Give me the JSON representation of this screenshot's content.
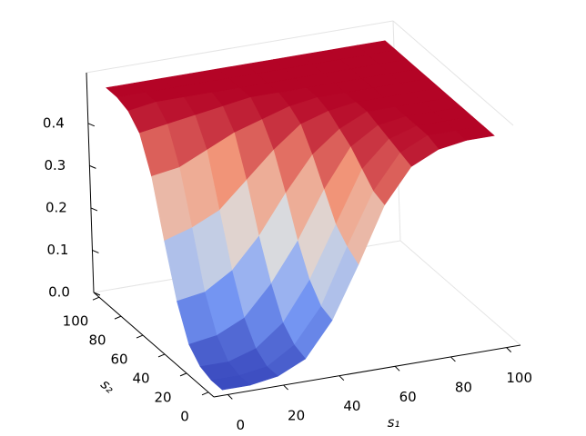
{
  "chart_data": {
    "type": "surface",
    "xlabel": "s₁",
    "ylabel": "s₂",
    "x": [
      0,
      10,
      20,
      30,
      40,
      50,
      60,
      70,
      80,
      90,
      100
    ],
    "y": [
      0,
      10,
      20,
      30,
      40,
      50,
      60,
      70,
      80,
      90,
      100
    ],
    "z": [
      [
        0,
        0,
        0.01,
        0.04,
        0.12,
        0.24,
        0.37,
        0.45,
        0.48,
        0.49,
        0.49
      ],
      [
        0,
        0,
        0.01,
        0.05,
        0.13,
        0.26,
        0.38,
        0.46,
        0.49,
        0.49,
        0.49
      ],
      [
        0.01,
        0.01,
        0.03,
        0.08,
        0.17,
        0.29,
        0.41,
        0.47,
        0.49,
        0.49,
        0.49
      ],
      [
        0.04,
        0.05,
        0.08,
        0.15,
        0.24,
        0.35,
        0.44,
        0.48,
        0.49,
        0.49,
        0.49
      ],
      [
        0.12,
        0.13,
        0.17,
        0.24,
        0.33,
        0.41,
        0.46,
        0.49,
        0.49,
        0.49,
        0.49
      ],
      [
        0.24,
        0.26,
        0.29,
        0.35,
        0.41,
        0.46,
        0.48,
        0.49,
        0.49,
        0.49,
        0.49
      ],
      [
        0.37,
        0.38,
        0.41,
        0.44,
        0.46,
        0.48,
        0.49,
        0.49,
        0.49,
        0.49,
        0.49
      ],
      [
        0.45,
        0.46,
        0.47,
        0.48,
        0.49,
        0.49,
        0.49,
        0.49,
        0.49,
        0.49,
        0.49
      ],
      [
        0.48,
        0.49,
        0.49,
        0.49,
        0.49,
        0.49,
        0.49,
        0.49,
        0.49,
        0.49,
        0.49
      ],
      [
        0.49,
        0.49,
        0.49,
        0.49,
        0.49,
        0.49,
        0.49,
        0.49,
        0.49,
        0.49,
        0.49
      ],
      [
        0.49,
        0.49,
        0.49,
        0.49,
        0.49,
        0.49,
        0.49,
        0.49,
        0.49,
        0.49,
        0.49
      ]
    ],
    "xlim": [
      -5,
      105
    ],
    "ylim": [
      -5,
      105
    ],
    "zlim": [
      0,
      0.52
    ],
    "xticks": [
      0,
      20,
      40,
      60,
      80,
      100
    ],
    "yticks": [
      0,
      20,
      40,
      60,
      80,
      100
    ],
    "zticks": [
      {
        "value": 0,
        "label": "0.0"
      },
      0.1,
      0.2,
      0.3,
      0.4
    ],
    "colormap": "coolwarm",
    "grid": false
  }
}
